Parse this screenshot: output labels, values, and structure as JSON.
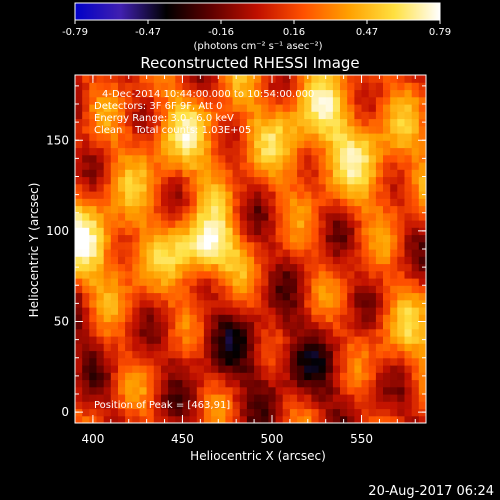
{
  "chart_data": {
    "type": "heatmap",
    "title": "Reconstructed RHESSI Image",
    "xlabel": "Heliocentric X (arcsec)",
    "ylabel": "Heliocentric Y (arcsec)",
    "xlim": [
      390,
      586
    ],
    "ylim": [
      -6,
      186
    ],
    "x_ticks": [
      400,
      450,
      500,
      550
    ],
    "y_ticks": [
      0,
      50,
      100,
      150
    ],
    "colorbar": {
      "range": [
        -0.79,
        0.79
      ],
      "ticks": [
        "-0.79",
        "-0.47",
        "-0.16",
        "0.16",
        "0.47",
        "0.79"
      ],
      "unit_label": "(photons cm⁻² s⁻¹ asec⁻²)",
      "colormap": [
        "#0000c8",
        "#4020b0",
        "#000000",
        "#600000",
        "#c01000",
        "#ff5000",
        "#ffa000",
        "#ffe040",
        "#ffffff"
      ]
    },
    "annotations": [
      "4-Dec-2014 10:44:00.000 to 10:54:00.000",
      "Detectors: 3F 6F 9F, Att 0",
      "Energy Range: 3.0 - 6.0 keV",
      "Clean    Total counts: 1.03E+05"
    ],
    "peak_label": "Position of Peak = [463,91]",
    "peak": {
      "x": 463,
      "y": 91,
      "value": 0.79
    },
    "features": [
      {
        "x": 463,
        "y": 91,
        "intensity": 1.0
      },
      {
        "x": 395,
        "y": 93,
        "intensity": 0.6
      },
      {
        "x": 450,
        "y": 150,
        "intensity": 0.45
      },
      {
        "x": 520,
        "y": 160,
        "intensity": 0.5
      },
      {
        "x": 560,
        "y": 140,
        "intensity": 0.4
      },
      {
        "x": 575,
        "y": 30,
        "intensity": 0.5
      },
      {
        "x": 430,
        "y": 50,
        "intensity": 0.35
      }
    ]
  },
  "footer": {
    "date": "20-Aug-2017 06:24"
  }
}
